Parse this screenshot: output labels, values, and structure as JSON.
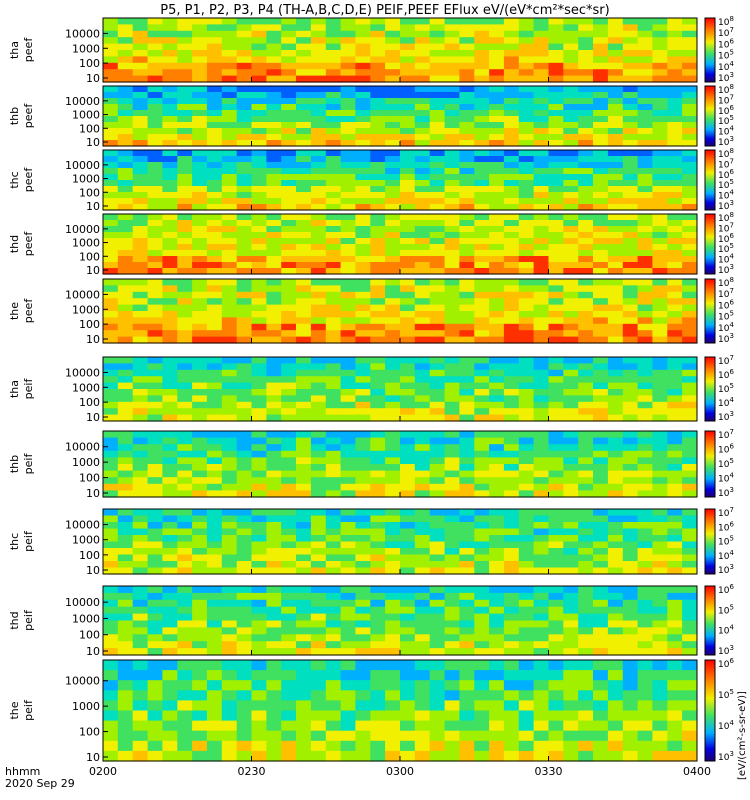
{
  "title": "P5, P1, P2, P3, P4 (TH-A,B,C,D,E) PEIF,PEEF EFlux eV/(eV*cm²*sec*sr)",
  "footer": {
    "hhmm": "hhmm",
    "date": "2020 Sep 29"
  },
  "colorbar_unit_label": "[eV/(cm²-s-sr-eV)]",
  "chart_data": [
    {
      "type": "heatmap",
      "probe": "tha",
      "species": "peef",
      "ylabel_top": "tha",
      "ylabel_bottom": "peef",
      "cb_min_exp": 3,
      "cb_max_exp": 8,
      "ylog": true,
      "yticks": [
        "10",
        "100",
        "1000",
        "10000"
      ],
      "xticks": [
        "0200",
        "0230",
        "0300",
        "0330",
        "0400"
      ]
    },
    {
      "type": "heatmap",
      "probe": "thb",
      "species": "peef",
      "ylabel_top": "thb",
      "ylabel_bottom": "peef",
      "cb_min_exp": 3,
      "cb_max_exp": 8,
      "ylog": true,
      "yticks": [
        "10",
        "100",
        "1000",
        "10000"
      ],
      "xticks": [
        "0200",
        "0230",
        "0300",
        "0330",
        "0400"
      ]
    },
    {
      "type": "heatmap",
      "probe": "thc",
      "species": "peef",
      "ylabel_top": "thc",
      "ylabel_bottom": "peef",
      "cb_min_exp": 3,
      "cb_max_exp": 8,
      "ylog": true,
      "yticks": [
        "10",
        "100",
        "1000",
        "10000"
      ],
      "xticks": [
        "0200",
        "0230",
        "0300",
        "0330",
        "0400"
      ]
    },
    {
      "type": "heatmap",
      "probe": "thd",
      "species": "peef",
      "ylabel_top": "thd",
      "ylabel_bottom": "peef",
      "cb_min_exp": 3,
      "cb_max_exp": 8,
      "ylog": true,
      "yticks": [
        "10",
        "100",
        "1000",
        "10000"
      ],
      "xticks": [
        "0200",
        "0230",
        "0300",
        "0330",
        "0400"
      ]
    },
    {
      "type": "heatmap",
      "probe": "the",
      "species": "peef",
      "ylabel_top": "the",
      "ylabel_bottom": "peef",
      "cb_min_exp": 3,
      "cb_max_exp": 8,
      "ylog": true,
      "yticks": [
        "10",
        "100",
        "1000",
        "10000"
      ],
      "xticks": [
        "0200",
        "0230",
        "0300",
        "0330",
        "0400"
      ]
    },
    {
      "type": "heatmap",
      "probe": "tha",
      "species": "peif",
      "ylabel_top": "tha",
      "ylabel_bottom": "peif",
      "cb_min_exp": 3,
      "cb_max_exp": 7,
      "ylog": true,
      "yticks": [
        "10",
        "100",
        "1000",
        "10000"
      ],
      "xticks": [
        "0200",
        "0230",
        "0300",
        "0330",
        "0400"
      ]
    },
    {
      "type": "heatmap",
      "probe": "thb",
      "species": "peif",
      "ylabel_top": "thb",
      "ylabel_bottom": "peif",
      "cb_min_exp": 3,
      "cb_max_exp": 7,
      "ylog": true,
      "yticks": [
        "10",
        "100",
        "1000",
        "10000"
      ],
      "xticks": [
        "0200",
        "0230",
        "0300",
        "0330",
        "0400"
      ]
    },
    {
      "type": "heatmap",
      "probe": "thc",
      "species": "peif",
      "ylabel_top": "thc",
      "ylabel_bottom": "peif",
      "cb_min_exp": 3,
      "cb_max_exp": 7,
      "ylog": true,
      "yticks": [
        "10",
        "100",
        "1000",
        "10000"
      ],
      "xticks": [
        "0200",
        "0230",
        "0300",
        "0330",
        "0400"
      ]
    },
    {
      "type": "heatmap",
      "probe": "thd",
      "species": "peif",
      "ylabel_top": "thd",
      "ylabel_bottom": "peif",
      "cb_min_exp": 3,
      "cb_max_exp": 6,
      "ylog": true,
      "yticks": [
        "10",
        "100",
        "1000",
        "10000"
      ],
      "xticks": [
        "0200",
        "0230",
        "0300",
        "0330",
        "0400"
      ]
    },
    {
      "type": "heatmap",
      "probe": "the",
      "species": "peif",
      "ylabel_top": "the",
      "ylabel_bottom": "peif",
      "cb_min_exp": 3,
      "cb_max_exp": 6,
      "ylog": true,
      "yticks": [
        "10",
        "100",
        "1000",
        "10000"
      ],
      "xticks": [
        "0200",
        "0230",
        "0300",
        "0330",
        "0400"
      ]
    }
  ]
}
